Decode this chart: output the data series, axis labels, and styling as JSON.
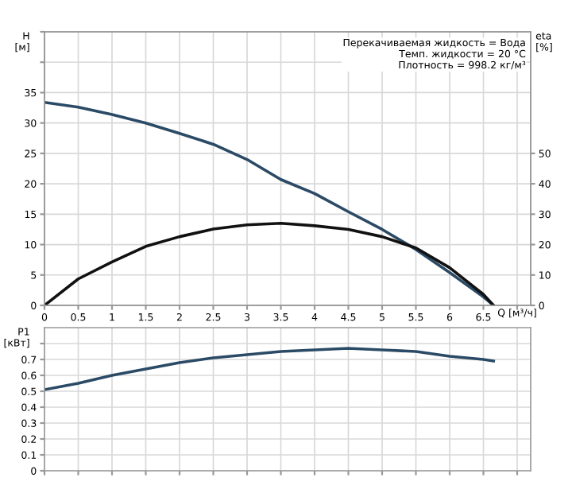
{
  "chart_data": [
    {
      "type": "line",
      "ylabel": "H [м]",
      "y2label": "eta [%]",
      "xlabel": "Q [м³/ч]",
      "annotations": [
        "Перекачиваемая жидкость = Вода",
        "Темп. жидкости = 20 °C",
        "Плотность = 998.2 кг/м³"
      ],
      "series": [
        {
          "color": "#2b4a66",
          "x": [
            0,
            0.5,
            1,
            1.5,
            2,
            2.5,
            3,
            3.5,
            4,
            4.5,
            5,
            5.5,
            6,
            6.5,
            6.65
          ],
          "values": [
            33.4,
            32.6,
            31.4,
            30,
            28.3,
            26.5,
            24,
            20.7,
            18.4,
            15.4,
            12.5,
            9.2,
            5.4,
            1.4,
            0
          ]
        },
        {
          "color": "#111111",
          "axis": "y2",
          "x": [
            0,
            0.5,
            1,
            1.5,
            2,
            2.5,
            3,
            3.5,
            4,
            4.5,
            5,
            5.5,
            6,
            6.5,
            6.65
          ],
          "values": [
            0,
            8.7,
            14.3,
            19.4,
            22.6,
            25.1,
            26.5,
            27,
            26.2,
            25,
            22.6,
            18.9,
            12.4,
            3.6,
            0
          ]
        }
      ],
      "xlim": [
        0,
        7.2
      ],
      "xticks": [
        0,
        0.5,
        1,
        1.5,
        2,
        2.5,
        3,
        3.5,
        4,
        4.5,
        5,
        5.5,
        6,
        6.5,
        {
          "value": 7,
          "label": null
        }
      ],
      "ylim": [
        0,
        45
      ],
      "yticks": [
        0,
        5,
        10,
        15,
        20,
        25,
        30,
        35,
        {
          "value": 40,
          "label": null
        },
        {
          "value": 45,
          "label": null
        }
      ],
      "y2lim": [
        0,
        90
      ],
      "y2ticks": [
        0,
        10,
        20,
        30,
        40,
        50
      ],
      "grid": true,
      "marker": "none",
      "line_style": "solid"
    },
    {
      "type": "line",
      "ylabel": "P1 [кВт]",
      "series": [
        {
          "color": "#2b4a66",
          "x": [
            0,
            0.5,
            1,
            1.5,
            2,
            2.5,
            3,
            3.5,
            4,
            4.5,
            5,
            5.5,
            6,
            6.5,
            6.65
          ],
          "values": [
            0.51,
            0.55,
            0.6,
            0.64,
            0.68,
            0.71,
            0.73,
            0.75,
            0.76,
            0.77,
            0.76,
            0.75,
            0.72,
            0.7,
            0.69
          ]
        }
      ],
      "xlim": [
        0,
        7.2
      ],
      "xticks": [
        0,
        0.5,
        1,
        1.5,
        2,
        2.5,
        3,
        3.5,
        4,
        4.5,
        5,
        5.5,
        6,
        6.5,
        7
      ],
      "ylim": [
        0,
        0.9
      ],
      "yticks": [
        0,
        0.1,
        0.2,
        0.3,
        0.4,
        0.5,
        0.6,
        0.7,
        {
          "value": 0.8,
          "label": null
        }
      ],
      "tick_labels": "y",
      "grid": true,
      "marker": "none",
      "line_style": "solid"
    }
  ]
}
